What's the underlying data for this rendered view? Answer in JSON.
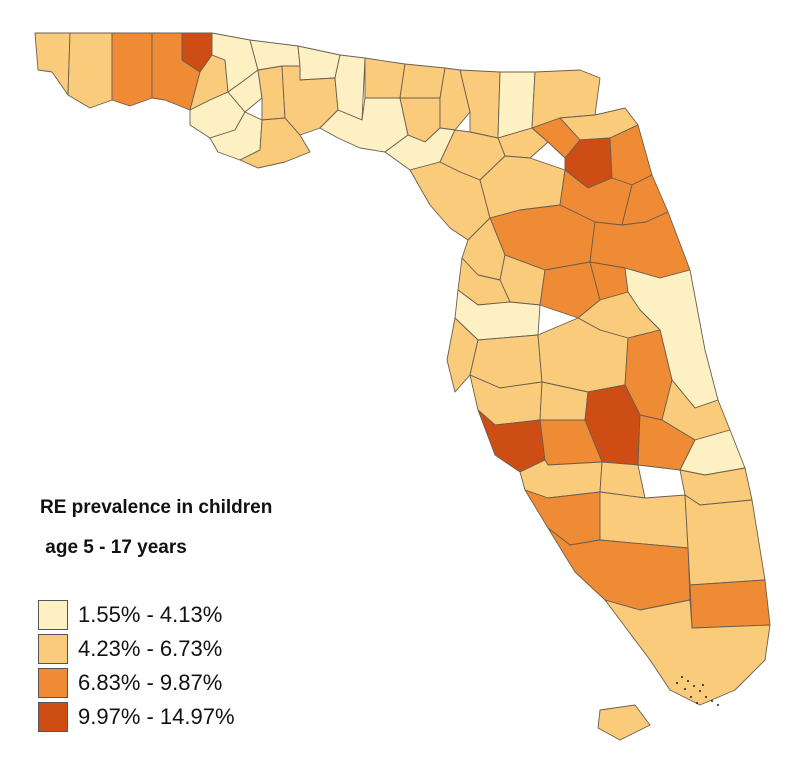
{
  "legend": {
    "title_line1": "RE prevalence in children",
    "title_line2": " age 5 - 17 years",
    "classes": [
      {
        "label": "1.55% - 4.13%",
        "color": "#fdf0c3"
      },
      {
        "label": "4.23% - 6.73%",
        "color": "#f9cb7b"
      },
      {
        "label": "6.83% - 9.87%",
        "color": "#f08b35"
      },
      {
        "label": "9.97% - 14.97%",
        "color": "#cd4d15"
      }
    ]
  },
  "map": {
    "region": "Florida counties",
    "county_classes": [
      2,
      2,
      3,
      3,
      4,
      2,
      1,
      1,
      1,
      1,
      2,
      2,
      1,
      1,
      2,
      1,
      1,
      2,
      2,
      2,
      2,
      1,
      2,
      1,
      2,
      2,
      2,
      3,
      4,
      3,
      2,
      2,
      2,
      3,
      3,
      3,
      3,
      2,
      2,
      3,
      3,
      2,
      1,
      2,
      1,
      2,
      2,
      2,
      3,
      2,
      2,
      4,
      2,
      3,
      4,
      3,
      1,
      2,
      2,
      2,
      3,
      2,
      2,
      3,
      3,
      2,
      2,
      2
    ]
  }
}
